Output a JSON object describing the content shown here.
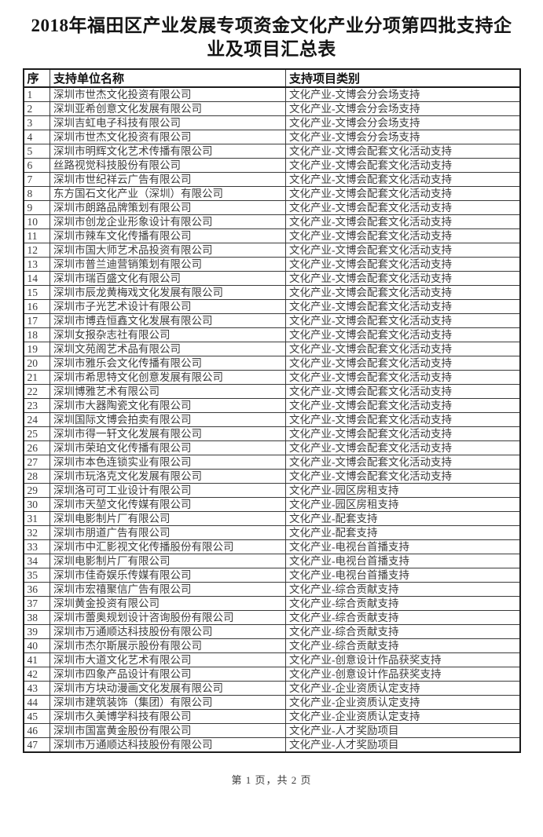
{
  "title": "2018年福田区产业发展专项资金文化产业分项第四批支持企业及项目汇总表",
  "colors": {
    "background": "#ffffff",
    "text": "#3c3c3c",
    "border": "#1c1c1c"
  },
  "table": {
    "headers": [
      "序",
      "支持单位名称",
      "支持项目类别"
    ],
    "rows": [
      {
        "no": "1",
        "company": "深圳市世杰文化投资有限公司",
        "category": "文化产业-文博会分会场支持"
      },
      {
        "no": "2",
        "company": "深圳亚希创意文化发展有限公司",
        "category": "文化产业-文博会分会场支持"
      },
      {
        "no": "3",
        "company": "深圳吉虹电子科技有限公司",
        "category": "文化产业-文博会分会场支持"
      },
      {
        "no": "4",
        "company": "深圳市世杰文化投资有限公司",
        "category": "文化产业-文博会分会场支持"
      },
      {
        "no": "5",
        "company": "深圳市明辉文化艺术传播有限公司",
        "category": "文化产业-文博会配套文化活动支持"
      },
      {
        "no": "6",
        "company": "丝路视觉科技股份有限公司",
        "category": "文化产业-文博会配套文化活动支持"
      },
      {
        "no": "7",
        "company": "深圳市世纪祥云广告有限公司",
        "category": "文化产业-文博会配套文化活动支持"
      },
      {
        "no": "8",
        "company": "东方国石文化产业（深圳）有限公司",
        "category": "文化产业-文博会配套文化活动支持"
      },
      {
        "no": "9",
        "company": "深圳市朗路品牌策划有限公司",
        "category": "文化产业-文博会配套文化活动支持"
      },
      {
        "no": "10",
        "company": "深圳市创龙企业形象设计有限公司",
        "category": "文化产业-文博会配套文化活动支持"
      },
      {
        "no": "11",
        "company": "深圳市辣车文化传播有限公司",
        "category": "文化产业-文博会配套文化活动支持"
      },
      {
        "no": "12",
        "company": "深圳市国大师艺术品投资有限公司",
        "category": "文化产业-文博会配套文化活动支持"
      },
      {
        "no": "13",
        "company": "深圳市普兰迪营销策划有限公司",
        "category": "文化产业-文博会配套文化活动支持"
      },
      {
        "no": "14",
        "company": "深圳市瑞百盛文化有限公司",
        "category": "文化产业-文博会配套文化活动支持"
      },
      {
        "no": "15",
        "company": "深圳市辰龙黄梅戏文化发展有限公司",
        "category": "文化产业-文博会配套文化活动支持"
      },
      {
        "no": "16",
        "company": "深圳市子光艺术设计有限公司",
        "category": "文化产业-文博会配套文化活动支持"
      },
      {
        "no": "17",
        "company": "深圳市博垚恒鑫文化发展有限公司",
        "category": "文化产业-文博会配套文化活动支持"
      },
      {
        "no": "18",
        "company": "深圳女报杂志社有限公司",
        "category": "文化产业-文博会配套文化活动支持"
      },
      {
        "no": "19",
        "company": "深圳文苑阁艺术品有限公司",
        "category": "文化产业-文博会配套文化活动支持"
      },
      {
        "no": "20",
        "company": "深圳市雅乐会文化传播有限公司",
        "category": "文化产业-文博会配套文化活动支持"
      },
      {
        "no": "21",
        "company": "深圳市希思特文化创意发展有限公司",
        "category": "文化产业-文博会配套文化活动支持"
      },
      {
        "no": "22",
        "company": "深圳博雅艺术有限公司",
        "category": "文化产业-文博会配套文化活动支持"
      },
      {
        "no": "23",
        "company": "深圳市大器陶瓷文化有限公司",
        "category": "文化产业-文博会配套文化活动支持"
      },
      {
        "no": "24",
        "company": "深圳国际文博会拍卖有限公司",
        "category": "文化产业-文博会配套文化活动支持"
      },
      {
        "no": "25",
        "company": "深圳市得一轩文化发展有限公司",
        "category": "文化产业-文博会配套文化活动支持"
      },
      {
        "no": "26",
        "company": "深圳市荣珀文化传播有限公司",
        "category": "文化产业-文博会配套文化活动支持"
      },
      {
        "no": "27",
        "company": "深圳市本色连锁实业有限公司",
        "category": "文化产业-文博会配套文化活动支持"
      },
      {
        "no": "28",
        "company": "深圳市玩洛克文化发展有限公司",
        "category": "文化产业-文博会配套文化活动支持"
      },
      {
        "no": "29",
        "company": "深圳洛可可工业设计有限公司",
        "category": "文化产业-园区房租支持"
      },
      {
        "no": "30",
        "company": "深圳市天堃文化传媒有限公司",
        "category": "文化产业-园区房租支持"
      },
      {
        "no": "31",
        "company": "深圳电影制片厂有限公司",
        "category": "文化产业-配套支持"
      },
      {
        "no": "32",
        "company": "深圳市朋道广告有限公司",
        "category": "文化产业-配套支持"
      },
      {
        "no": "33",
        "company": "深圳市中汇影视文化传播股份有限公司",
        "category": "文化产业-电视台首播支持"
      },
      {
        "no": "34",
        "company": "深圳电影制片厂有限公司",
        "category": "文化产业-电视台首播支持"
      },
      {
        "no": "35",
        "company": "深圳市佳奇娱乐传媒有限公司",
        "category": "文化产业-电视台首播支持"
      },
      {
        "no": "36",
        "company": "深圳市宏禧聚信广告有限公司",
        "category": "文化产业-综合贡献支持"
      },
      {
        "no": "37",
        "company": "深圳黄金投资有限公司",
        "category": "文化产业-综合贡献支持"
      },
      {
        "no": "38",
        "company": "深圳市蕾奥规划设计咨询股份有限公司",
        "category": "文化产业-综合贡献支持"
      },
      {
        "no": "39",
        "company": "深圳市万通顺达科技股份有限公司",
        "category": "文化产业-综合贡献支持"
      },
      {
        "no": "40",
        "company": "深圳市杰尔斯展示股份有限公司",
        "category": "文化产业-综合贡献支持"
      },
      {
        "no": "41",
        "company": "深圳市大道文化艺术有限公司",
        "category": "文化产业-创意设计作品获奖支持"
      },
      {
        "no": "42",
        "company": "深圳市四象产品设计有限公司",
        "category": "文化产业-创意设计作品获奖支持"
      },
      {
        "no": "43",
        "company": "深圳市方块动漫画文化发展有限公司",
        "category": "文化产业-企业资质认定支持"
      },
      {
        "no": "44",
        "company": "深圳市建筑装饰（集团）有限公司",
        "category": "文化产业-企业资质认定支持"
      },
      {
        "no": "45",
        "company": "深圳市久美博学科技有限公司",
        "category": "文化产业-企业资质认定支持"
      },
      {
        "no": "46",
        "company": "深圳市国富黄金股份有限公司",
        "category": "文化产业-人才奖励项目"
      },
      {
        "no": "47",
        "company": "深圳市万通顺达科技股份有限公司",
        "category": "文化产业-人才奖励项目"
      }
    ]
  },
  "footer": {
    "page_text": "第 1 页，共 2 页"
  }
}
